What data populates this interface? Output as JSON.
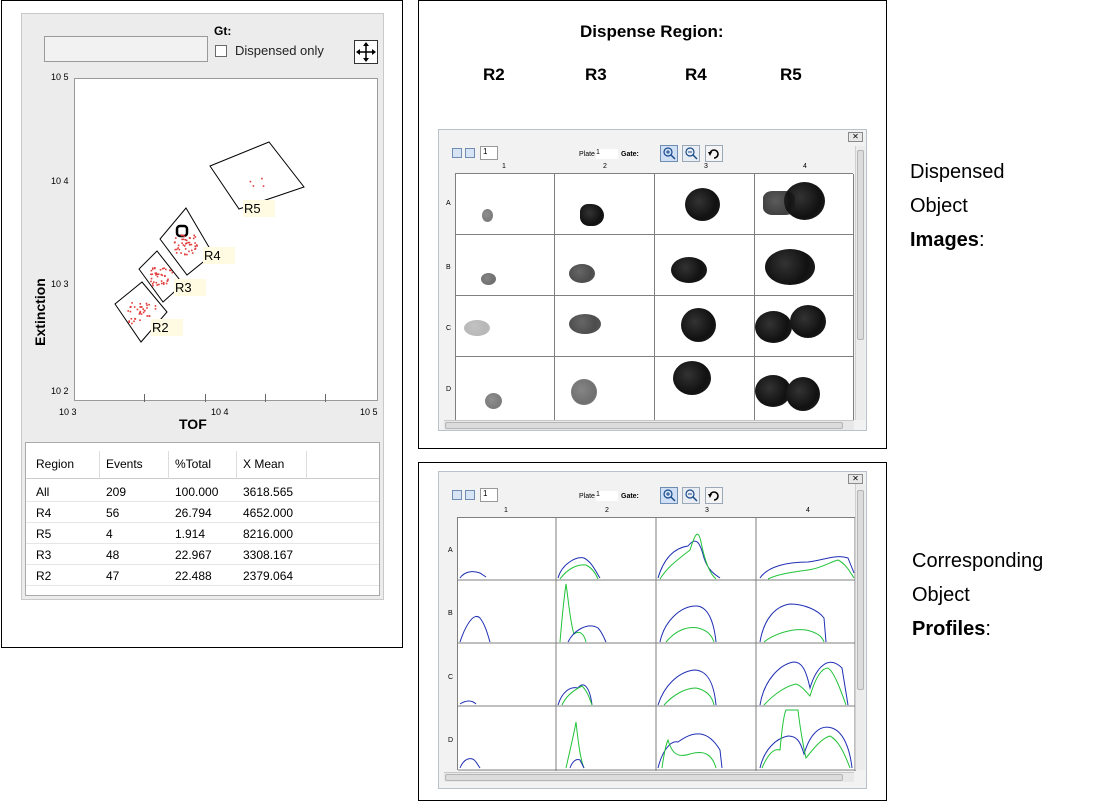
{
  "gate_panel": {
    "gt_label": "Gt:",
    "dispensed_only_label": "Dispensed only",
    "y_axis_label": "Extinction",
    "x_axis_label": "TOF",
    "y_ticks": [
      "10 5",
      "10 4",
      "10 3",
      "10 2"
    ],
    "x_ticks": [
      "10 3",
      "10 4",
      "10 5"
    ],
    "regions": [
      "R5",
      "R4",
      "R3",
      "R2"
    ],
    "table": {
      "headers": [
        "Region",
        "Events",
        "%Total",
        "X Mean"
      ],
      "rows": [
        [
          "All",
          "209",
          "100.000",
          "3618.565"
        ],
        [
          "R4",
          "56",
          "26.794",
          "4652.000"
        ],
        [
          "R5",
          "4",
          "1.914",
          "8216.000"
        ],
        [
          "R3",
          "48",
          "22.967",
          "3308.167"
        ],
        [
          "R2",
          "47",
          "22.488",
          "2379.064"
        ]
      ]
    }
  },
  "images_panel": {
    "title": "Dispense Region:",
    "region_headers": [
      "R2",
      "R3",
      "R4",
      "R5"
    ],
    "plate_label": "Plate",
    "plate_value": "1",
    "gate_label": "Gate:",
    "page_value": "1",
    "columns": [
      "1",
      "2",
      "3",
      "4"
    ],
    "rows": [
      "A",
      "B",
      "C",
      "D"
    ]
  },
  "profiles_panel": {
    "plate_label": "Plate",
    "plate_value": "1",
    "gate_label": "Gate:",
    "page_value": "1",
    "columns": [
      "1",
      "2",
      "3",
      "4"
    ],
    "rows": [
      "A",
      "B",
      "C",
      "D"
    ]
  },
  "side_labels": {
    "images_line1": "Dispensed",
    "images_line2": "Object",
    "images_line3": "Images",
    "images_suffix": ":",
    "profiles_line1": "Corresponding",
    "profiles_line2": "Object",
    "profiles_line3": "Profiles",
    "profiles_suffix": ":"
  },
  "colors": {
    "profile_blue": "#1f2fb4",
    "profile_green": "#22c33a",
    "scatter_red": "#e23b3b",
    "window_border": "#b9c2cc"
  }
}
